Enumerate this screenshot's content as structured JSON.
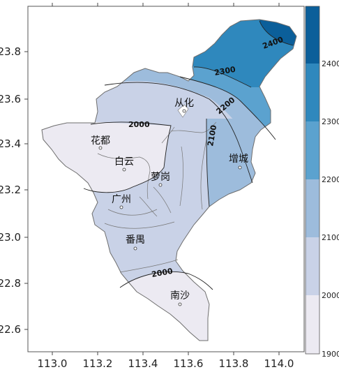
{
  "colors": {
    "band_1900_2000": "#eceaf2",
    "band_2000_2100": "#c9d2e7",
    "band_2100_2200": "#9dbcdc",
    "band_2200_2300": "#5ba2cf",
    "band_2300_2400": "#2f88bd",
    "band_2400_plus": "#0b5f9a",
    "boundary": "#6d6d6d",
    "isoline": "#222222"
  },
  "axes": {
    "x_ticks": [
      "113.0",
      "113.2",
      "113.4",
      "113.6",
      "113.8",
      "114.0"
    ],
    "y_ticks": [
      "23.8",
      "23.6",
      "23.4",
      "23.2",
      "23.0",
      "22.8",
      "22.6"
    ]
  },
  "chart_data": {
    "type": "heatmap",
    "title": "",
    "xlabel": "",
    "ylabel": "",
    "xlim": [
      112.88,
      114.1
    ],
    "ylim": [
      22.52,
      23.95
    ],
    "x_ticks": [
      113.0,
      113.2,
      113.4,
      113.6,
      113.8,
      114.0
    ],
    "y_ticks": [
      23.8,
      23.6,
      23.4,
      23.2,
      23.0,
      22.8,
      22.6
    ],
    "colorbar": {
      "labels": [
        "2400",
        "2300",
        "2200",
        "2100",
        "2000",
        "1900"
      ],
      "levels": [
        1900,
        2000,
        2100,
        2200,
        2300,
        2400
      ]
    },
    "contour_labels": [
      {
        "text": "2400",
        "lon": 113.91,
        "lat": 23.82
      },
      {
        "text": "2300",
        "lon": 113.76,
        "lat": 23.66
      },
      {
        "text": "2200",
        "lon": 113.7,
        "lat": 23.55
      },
      {
        "text": "2100",
        "lon": 113.66,
        "lat": 23.44
      },
      {
        "text": "2000",
        "lon": 113.35,
        "lat": 23.49
      },
      {
        "text": "2000",
        "lon": 113.47,
        "lat": 22.86
      }
    ],
    "places": [
      {
        "name": "从化",
        "lon": 113.59,
        "lat": 23.57
      },
      {
        "name": "花都",
        "lon": 113.22,
        "lat": 23.39
      },
      {
        "name": "白云",
        "lon": 113.32,
        "lat": 23.29
      },
      {
        "name": "萝岗",
        "lon": 113.48,
        "lat": 23.22
      },
      {
        "name": "增城",
        "lon": 113.83,
        "lat": 23.3
      },
      {
        "name": "广州",
        "lon": 113.27,
        "lat": 23.13
      },
      {
        "name": "番禺",
        "lon": 113.36,
        "lat": 22.95
      },
      {
        "name": "南沙",
        "lon": 113.56,
        "lat": 22.72
      }
    ]
  }
}
